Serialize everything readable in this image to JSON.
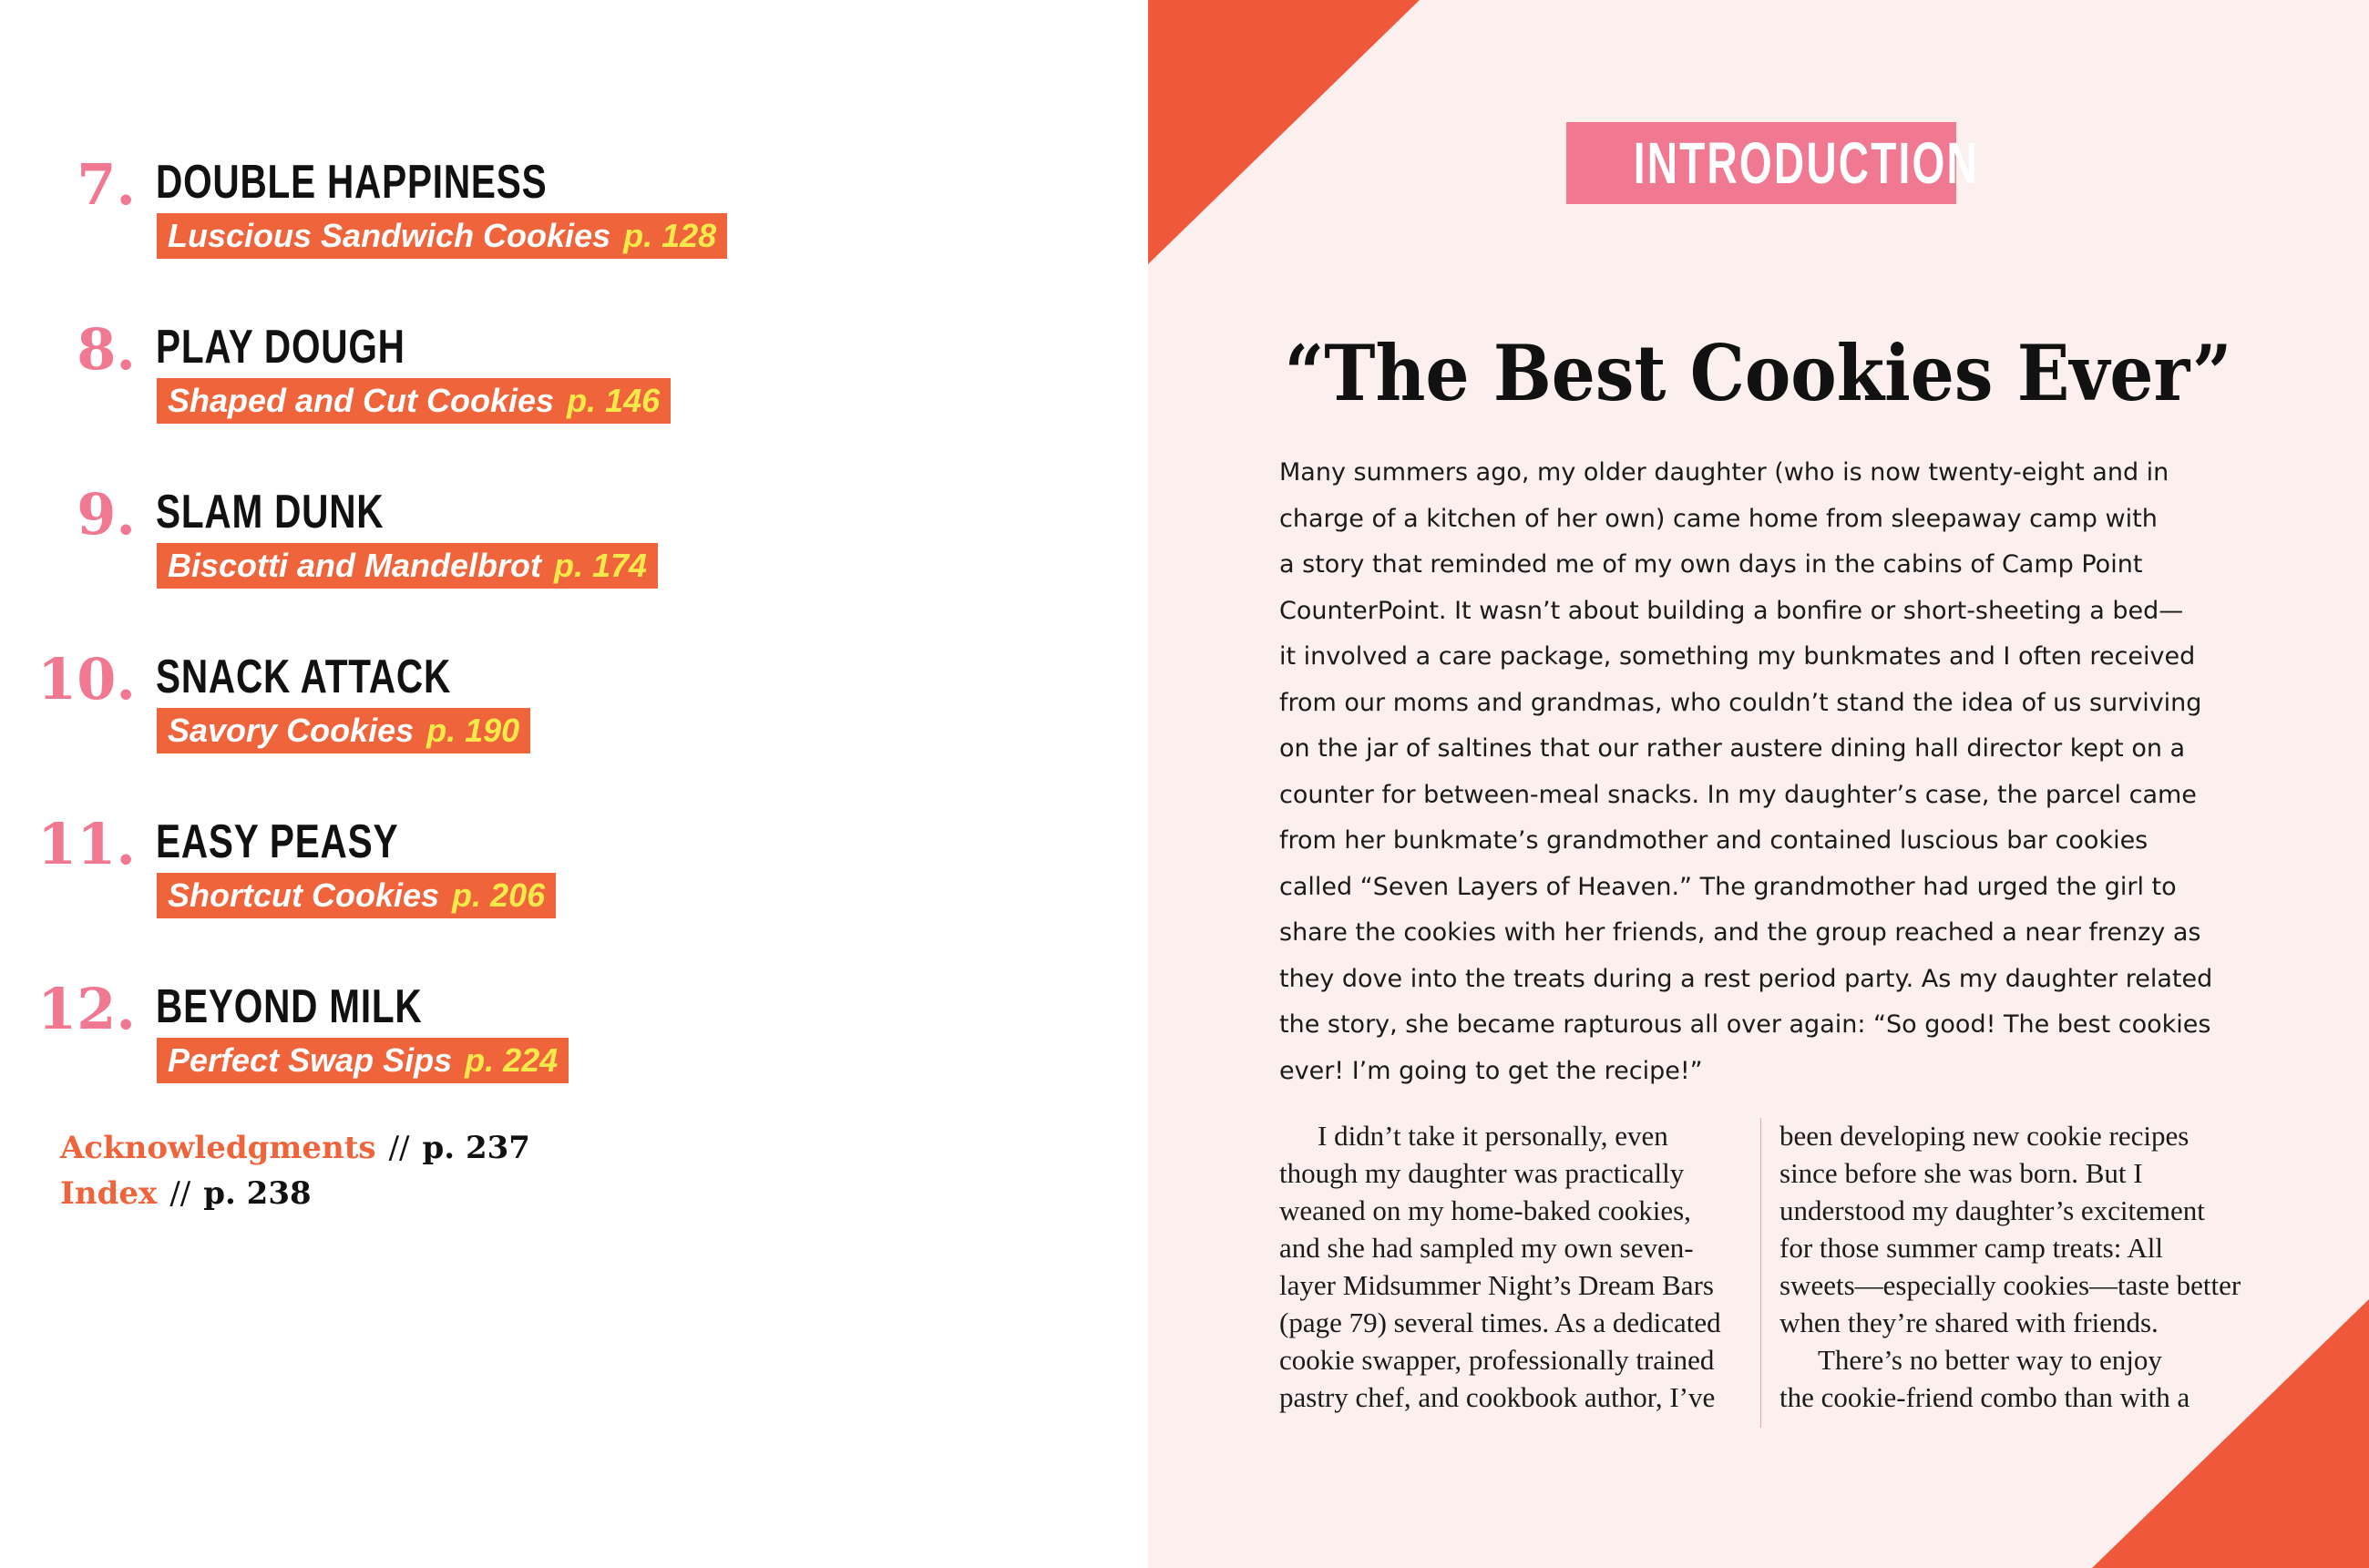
{
  "colors": {
    "accent_orange": "#f0643c",
    "accent_pink": "#f07891",
    "page_yellow": "#f6ea4a",
    "right_page_bg": "#fcf0ee",
    "triangle": "#f0583c"
  },
  "toc": {
    "items": [
      {
        "number": "7.",
        "title": "DOUBLE HAPPINESS",
        "subtitle": "Luscious Sandwich Cookies",
        "page": "p. 128"
      },
      {
        "number": "8.",
        "title": "PLAY DOUGH",
        "subtitle": "Shaped and Cut Cookies",
        "page": "p. 146"
      },
      {
        "number": "9.",
        "title": "SLAM DUNK",
        "subtitle": "Biscotti and Mandelbrot",
        "page": "p. 174"
      },
      {
        "number": "10.",
        "title": "SNACK ATTACK",
        "subtitle": "Savory Cookies",
        "page": "p. 190"
      },
      {
        "number": "11.",
        "title": "EASY PEASY",
        "subtitle": "Shortcut Cookies",
        "page": "p. 206"
      },
      {
        "number": "12.",
        "title": "BEYOND MILK",
        "subtitle": "Perfect Swap Sips",
        "page": "p. 224"
      }
    ],
    "back_matter": [
      {
        "label": "Acknowledgments",
        "separator": "//",
        "page": "p. 237"
      },
      {
        "label": "Index",
        "separator": "//",
        "page": "p. 238"
      }
    ]
  },
  "intro": {
    "badge": "INTRODUCTION",
    "title": "“The Best Cookies Ever”",
    "paragraph_lines": [
      "Many summers ago, my older daughter (who is now twenty-eight and in",
      "charge of a kitchen of her own) came home from sleepaway camp with",
      "a story that reminded me of my own days in the cabins of Camp Point",
      "CounterPoint. It wasn’t about building a bonfire or short-sheeting a bed—",
      "it involved a care package, something my bunkmates and I often received",
      "from our moms and grandmas, who couldn’t stand the idea of us surviving",
      "on the jar of saltines that our rather austere dining hall director kept on a",
      "counter for between-meal snacks. In my daughter’s case, the parcel came",
      "from her bunkmate’s grandmother and contained luscious bar cookies",
      "called “Seven Layers of Heaven.” The grandmother had urged the girl to",
      "share the cookies with her friends, and the group reached a near frenzy as",
      "they dove into the treats during a rest period party. As my daughter related",
      "the story, she became rapturous all over again: “So good! The best cookies",
      "ever! I’m going to get the recipe!”"
    ],
    "column_left": [
      "I didn’t take it personally, even",
      "though my daughter was practically",
      "weaned on my home-baked cookies,",
      "and she had sampled my own seven-",
      "layer Midsummer Night’s Dream Bars",
      "(page 79) several times. As a dedicated",
      "cookie swapper, professionally trained",
      "pastry chef, and cookbook author, I’ve"
    ],
    "column_right": [
      "been developing new cookie recipes",
      "since before she was born. But I",
      "understood my daughter’s excitement",
      "for those summer camp treats: All",
      "sweets—especially cookies—taste better",
      "when they’re shared with friends.",
      "There’s no better way to enjoy",
      "the cookie-friend combo than with a"
    ]
  }
}
